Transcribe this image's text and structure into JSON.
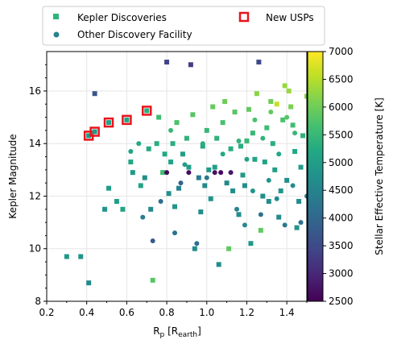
{
  "chart_data": {
    "type": "scatter",
    "title": "",
    "xlabel": {
      "main": "R",
      "sub": "p",
      "unit_open": " [R",
      "unit_sub": "earth",
      "unit_close": "]"
    },
    "ylabel": "Kepler Magnitude",
    "xlim": [
      0.2,
      1.5
    ],
    "ylim": [
      8,
      17.5
    ],
    "xticks": [
      0.2,
      0.4,
      0.6,
      0.8,
      1.0,
      1.2,
      1.4
    ],
    "xtick_labels": [
      "0.2",
      "0.4",
      "0.6",
      "0.8",
      "1.0",
      "1.2",
      "1.4"
    ],
    "yticks": [
      8,
      10,
      12,
      14,
      16
    ],
    "ytick_labels": [
      "8",
      "10",
      "12",
      "14",
      "16"
    ],
    "grid": true,
    "legend": {
      "placement": "above-plot",
      "entries": [
        {
          "label": "Kepler Discoveries",
          "marker": "square",
          "color": "#2fb47c"
        },
        {
          "label": "Other Discovery Facility",
          "marker": "circle",
          "color": "#26828e"
        },
        {
          "label": "New USPs",
          "marker": "open-square",
          "color": "#e8141c"
        }
      ]
    },
    "colorbar": {
      "label": "Stellar Effective Temperature [K]",
      "min": 2500,
      "max": 7000,
      "ticks": [
        2500,
        3000,
        3500,
        4000,
        4500,
        5000,
        5500,
        6000,
        6500,
        7000
      ],
      "colormap": "viridis"
    },
    "series": [
      {
        "name": "Kepler Discoveries",
        "marker": "square",
        "points": [
          [
            0.3,
            9.7,
            4900
          ],
          [
            0.37,
            9.7,
            4800
          ],
          [
            0.41,
            8.7,
            4600
          ],
          [
            0.44,
            15.9,
            3700
          ],
          [
            0.51,
            12.3,
            5000
          ],
          [
            0.49,
            11.5,
            4800
          ],
          [
            0.55,
            11.8,
            5000
          ],
          [
            0.58,
            11.5,
            5100
          ],
          [
            0.62,
            13.3,
            5200
          ],
          [
            0.63,
            12.9,
            4900
          ],
          [
            0.67,
            12.4,
            5100
          ],
          [
            0.69,
            12.7,
            4700
          ],
          [
            0.72,
            11.5,
            4600
          ],
          [
            0.73,
            8.8,
            5800
          ],
          [
            0.75,
            14.0,
            5300
          ],
          [
            0.78,
            12.9,
            5600
          ],
          [
            0.8,
            17.1,
            3400
          ],
          [
            0.82,
            13.3,
            5100
          ],
          [
            0.84,
            11.6,
            4800
          ],
          [
            0.86,
            12.3,
            4500
          ],
          [
            0.88,
            13.6,
            5000
          ],
          [
            0.9,
            14.2,
            5400
          ],
          [
            0.92,
            17.0,
            3300
          ],
          [
            0.94,
            10.0,
            4700
          ],
          [
            0.96,
            12.7,
            4400
          ],
          [
            0.98,
            13.9,
            5200
          ],
          [
            1.0,
            14.5,
            5500
          ],
          [
            1.02,
            11.9,
            4800
          ],
          [
            1.04,
            13.1,
            5000
          ],
          [
            1.06,
            9.4,
            4700
          ],
          [
            1.08,
            14.8,
            5700
          ],
          [
            1.1,
            12.5,
            4600
          ],
          [
            1.12,
            13.8,
            5300
          ],
          [
            1.14,
            15.2,
            5800
          ],
          [
            1.16,
            11.3,
            4700
          ],
          [
            1.18,
            12.8,
            4900
          ],
          [
            1.2,
            14.1,
            5500
          ],
          [
            1.22,
            10.2,
            4900
          ],
          [
            1.24,
            13.4,
            5100
          ],
          [
            1.26,
            17.1,
            3500
          ],
          [
            1.28,
            12.0,
            4700
          ],
          [
            1.3,
            14.6,
            5600
          ],
          [
            1.32,
            15.6,
            6000
          ],
          [
            1.34,
            13.0,
            5000
          ],
          [
            1.36,
            11.2,
            4600
          ],
          [
            1.38,
            14.9,
            5700
          ],
          [
            1.4,
            12.6,
            4700
          ],
          [
            1.42,
            15.4,
            6100
          ],
          [
            1.44,
            13.7,
            5200
          ],
          [
            1.46,
            11.8,
            4700
          ],
          [
            1.48,
            14.3,
            5400
          ],
          [
            1.5,
            15.8,
            6200
          ],
          [
            1.25,
            15.9,
            6200
          ],
          [
            1.33,
            14.0,
            5300
          ],
          [
            1.41,
            16.0,
            6300
          ],
          [
            1.29,
            13.3,
            5100
          ],
          [
            1.37,
            12.2,
            4800
          ],
          [
            1.45,
            10.8,
            4800
          ],
          [
            1.21,
            15.3,
            5900
          ],
          [
            1.17,
            13.9,
            5300
          ],
          [
            1.09,
            15.6,
            6000
          ],
          [
            1.01,
            13.0,
            4900
          ],
          [
            0.93,
            15.1,
            5800
          ],
          [
            0.97,
            11.4,
            4700
          ],
          [
            0.85,
            14.8,
            5700
          ],
          [
            0.81,
            12.1,
            4700
          ],
          [
            0.76,
            15.0,
            5600
          ],
          [
            0.71,
            13.8,
            5200
          ],
          [
            1.35,
            15.5,
            6600
          ],
          [
            1.23,
            14.4,
            5500
          ],
          [
            1.13,
            12.2,
            4700
          ],
          [
            1.05,
            14.2,
            5400
          ],
          [
            1.47,
            13.1,
            5000
          ],
          [
            1.43,
            14.7,
            5600
          ],
          [
            1.39,
            16.2,
            6300
          ],
          [
            1.31,
            11.8,
            4700
          ],
          [
            1.27,
            10.7,
            5900
          ],
          [
            1.19,
            12.4,
            4700
          ],
          [
            1.11,
            10.0,
            5900
          ],
          [
            1.03,
            15.4,
            5900
          ],
          [
            0.99,
            12.4,
            4600
          ],
          [
            0.91,
            13.1,
            5000
          ],
          [
            0.83,
            14.0,
            5300
          ],
          [
            0.79,
            13.6,
            5200
          ]
        ]
      },
      {
        "name": "Other Discovery Facility",
        "marker": "circle",
        "points": [
          [
            0.68,
            11.2,
            4400
          ],
          [
            0.73,
            10.3,
            3800
          ],
          [
            0.77,
            11.8,
            4100
          ],
          [
            0.8,
            12.9,
            2600
          ],
          [
            0.84,
            10.6,
            4200
          ],
          [
            0.87,
            12.5,
            3900
          ],
          [
            0.91,
            12.9,
            2650
          ],
          [
            0.95,
            10.2,
            4100
          ],
          [
            1.0,
            12.7,
            4300
          ],
          [
            1.04,
            12.9,
            2700
          ],
          [
            1.07,
            12.9,
            2600
          ],
          [
            1.12,
            12.9,
            2800
          ],
          [
            1.15,
            11.5,
            4500
          ],
          [
            1.19,
            10.9,
            4600
          ],
          [
            1.23,
            12.2,
            4800
          ],
          [
            1.27,
            11.3,
            4200
          ],
          [
            1.31,
            12.6,
            4800
          ],
          [
            1.35,
            11.9,
            4600
          ],
          [
            1.39,
            10.9,
            4300
          ],
          [
            1.43,
            12.4,
            4700
          ],
          [
            1.47,
            11.0,
            4200
          ],
          [
            1.5,
            12.0,
            4500
          ],
          [
            1.2,
            13.4,
            5100
          ],
          [
            1.28,
            14.2,
            5400
          ],
          [
            1.36,
            13.6,
            5200
          ],
          [
            1.44,
            14.4,
            5500
          ],
          [
            1.32,
            15.2,
            5900
          ],
          [
            1.4,
            15.0,
            5800
          ],
          [
            1.24,
            14.9,
            5700
          ],
          [
            1.16,
            14.1,
            5400
          ],
          [
            1.08,
            13.6,
            5200
          ],
          [
            0.98,
            14.0,
            5300
          ],
          [
            0.89,
            13.2,
            5000
          ],
          [
            0.82,
            14.5,
            5500
          ],
          [
            0.66,
            14.0,
            5200
          ],
          [
            0.62,
            13.7,
            5100
          ]
        ]
      },
      {
        "name": "New USPs",
        "marker": "open-square",
        "points": [
          [
            0.41,
            14.3,
            4900
          ],
          [
            0.44,
            14.45,
            4950
          ],
          [
            0.51,
            14.8,
            5100
          ],
          [
            0.6,
            14.9,
            5150
          ],
          [
            0.7,
            15.25,
            5300
          ]
        ]
      }
    ]
  }
}
